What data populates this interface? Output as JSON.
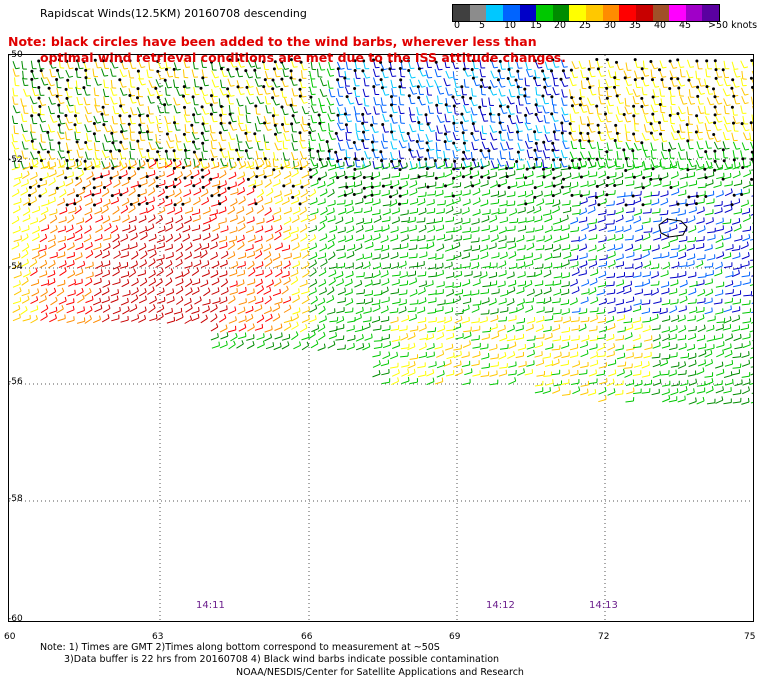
{
  "title": "Rapidscat Winds(12.5KM) 20160708 descending",
  "note_lines": [
    "Note: black circles have been added to the wind barbs, wherever less than",
    "optimal wind retrieval conditions are met due to the ISS attitude changes."
  ],
  "legend": {
    "unit": "knots",
    "tick_labels": [
      "0",
      "5",
      "10",
      "15",
      "20",
      "25",
      "30",
      "35",
      "40",
      "45",
      ">50 knots"
    ],
    "colors": [
      "#404040",
      "#8c8c8c",
      "#00c8ff",
      "#0064ff",
      "#0000c8",
      "#00c800",
      "#008c00",
      "#ffff00",
      "#ffc800",
      "#ff8c00",
      "#ff0000",
      "#c80000",
      "#a05028",
      "#ff00ff",
      "#a000c8",
      "#5a00a0"
    ]
  },
  "axes": {
    "lat_labels": [
      "-50",
      "-52",
      "-54",
      "-56",
      "-58",
      "-60"
    ],
    "lon_labels": [
      "60",
      "63",
      "66",
      "69",
      "72",
      "75"
    ]
  },
  "times": [
    "14:11",
    "14:12",
    "14:13"
  ],
  "footnotes": [
    "Note: 1) Times are GMT 2)Times along bottom correspond to measurement at ~50S",
    "3)Data buffer is 22 hrs from 20160708 4) Black wind barbs indicate possible contamination"
  ],
  "credit": "NOAA/NESDIS/Center for Satellite Applications and Research"
}
